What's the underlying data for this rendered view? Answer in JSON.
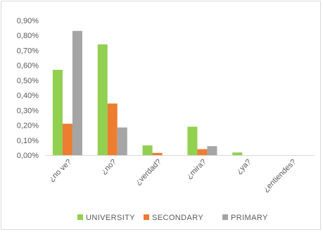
{
  "chart_data": {
    "type": "bar",
    "title": "",
    "xlabel": "",
    "ylabel": "",
    "categories": [
      "¿no ve?",
      "¿no?",
      "¿verdad?",
      "¿mira?",
      "¿ya?",
      "¿entiendes?"
    ],
    "series": [
      {
        "name": "UNIVERSITY",
        "color": "#92d050",
        "values": [
          0.57,
          0.74,
          0.065,
          0.19,
          0.018,
          0.0
        ]
      },
      {
        "name": "SECONDARY",
        "color": "#ed7d31",
        "values": [
          0.21,
          0.345,
          0.015,
          0.04,
          0.0,
          0.0
        ]
      },
      {
        "name": "PRIMARY",
        "color": "#a5a5a5",
        "values": [
          0.83,
          0.185,
          0.0,
          0.06,
          0.0,
          0.0
        ]
      }
    ],
    "y_ticks": [
      "0,00%",
      "0,10%",
      "0,20%",
      "0,30%",
      "0,40%",
      "0,50%",
      "0,60%",
      "0,70%",
      "0,80%",
      "0,90%"
    ],
    "ylim": [
      0,
      0.9
    ],
    "y_unit": "%",
    "grid": false,
    "legend_position": "bottom"
  }
}
